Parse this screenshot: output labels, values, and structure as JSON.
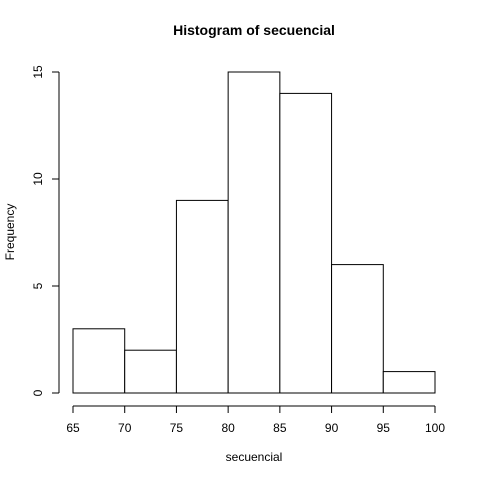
{
  "chart_data": {
    "type": "bar",
    "title": "Histogram of secuencial",
    "xlabel": "secuencial",
    "ylabel": "Frequency",
    "bin_edges": [
      65,
      70,
      75,
      80,
      85,
      90,
      95,
      100
    ],
    "values": [
      3,
      2,
      9,
      15,
      14,
      6,
      1
    ],
    "xlim": [
      65,
      100
    ],
    "ylim": [
      0,
      15
    ],
    "x_ticks": [
      65,
      70,
      75,
      80,
      85,
      90,
      95,
      100
    ],
    "y_ticks": [
      0,
      5,
      10,
      15
    ],
    "grid": false,
    "colors": {
      "bar_fill": "#ffffff",
      "bar_stroke": "#000000"
    }
  }
}
